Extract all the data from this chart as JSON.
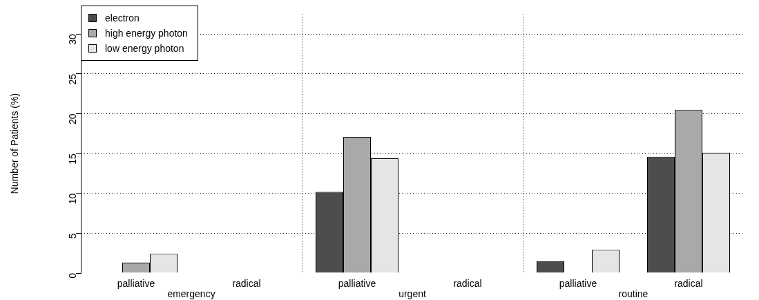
{
  "chart_data": {
    "type": "bar",
    "ylabel": "Number of Patients (%)",
    "categories": [
      "palliative",
      "radical",
      "palliative",
      "radical",
      "palliative",
      "radical"
    ],
    "series": [
      {
        "name": "electron",
        "color": "#4d4d4d",
        "values": [
          0,
          0,
          10.2,
          0,
          1.5,
          14.6
        ]
      },
      {
        "name": "high energy photon",
        "color": "#a9a9a9",
        "values": [
          1.3,
          0,
          17.1,
          0,
          0,
          20.5
        ]
      },
      {
        "name": "low energy photon",
        "color": "#e5e5e5",
        "values": [
          2.4,
          0,
          14.4,
          0,
          2.9,
          15.1
        ]
      }
    ],
    "annotations": [
      "emergency",
      "urgent",
      "routine"
    ],
    "ylim": [
      0,
      32.5
    ],
    "yticks": [
      0,
      5,
      10,
      15,
      20,
      25,
      30
    ],
    "grid": true,
    "legend": "top left"
  }
}
